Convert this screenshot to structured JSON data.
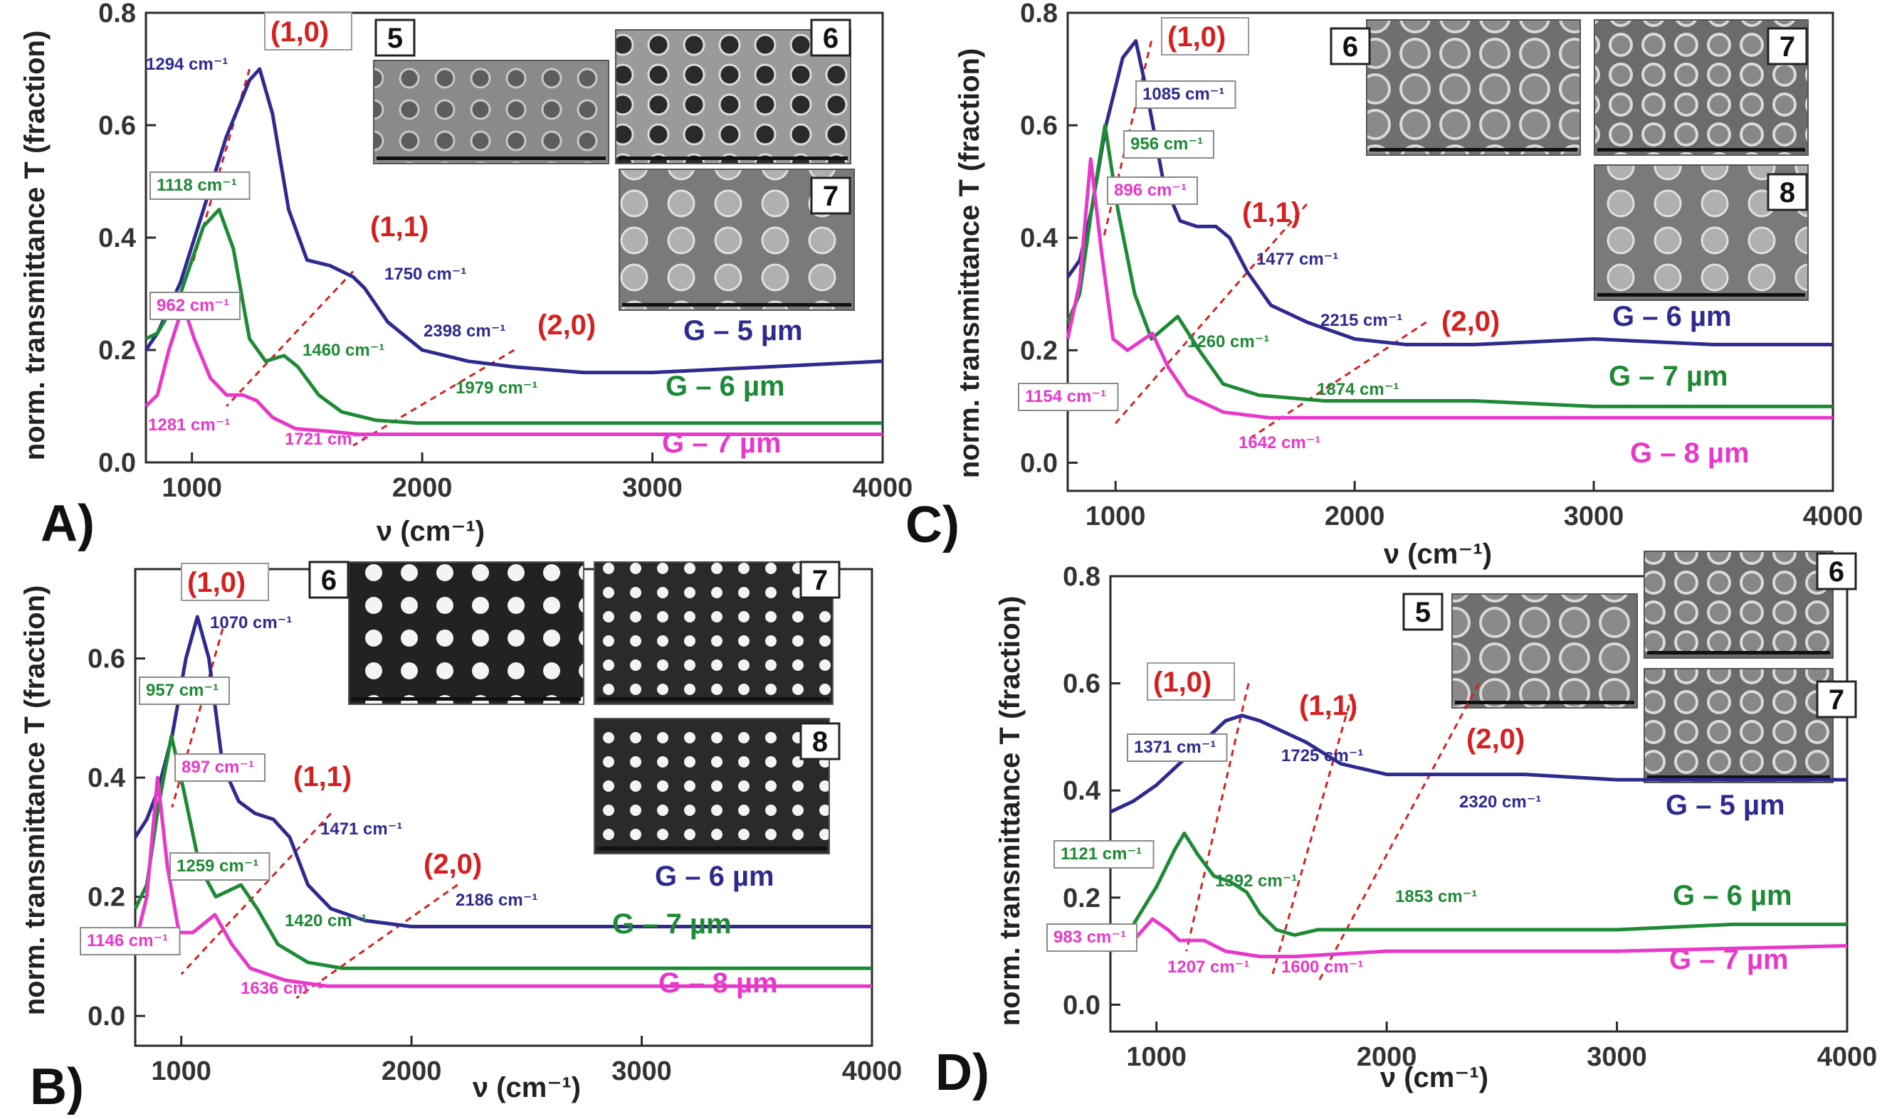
{
  "axis_titles": {
    "x": "ν (cm⁻¹)",
    "y": "norm. transmittance T (fraction)"
  },
  "colors": {
    "blue": "#2e2a8f",
    "green": "#1e8a35",
    "magenta": "#e838c9",
    "red": "#d62020",
    "frame": "#2a2a2a"
  },
  "chart_data": [
    {
      "panel": "A)",
      "type": "line",
      "xlim": [
        800,
        4000
      ],
      "ylim": [
        0,
        0.8
      ],
      "xticks": [
        1000,
        2000,
        3000,
        4000
      ],
      "yticks": [
        0.0,
        0.2,
        0.4,
        0.6,
        0.8
      ],
      "series": [
        {
          "name": "G – 5 µm",
          "color": "blue",
          "x": [
            800,
            850,
            950,
            1050,
            1150,
            1250,
            1294,
            1350,
            1420,
            1500,
            1600,
            1700,
            1750,
            1850,
            2000,
            2200,
            2398,
            2700,
            3000,
            3500,
            4000
          ],
          "y": [
            0.2,
            0.23,
            0.32,
            0.45,
            0.58,
            0.68,
            0.7,
            0.62,
            0.45,
            0.36,
            0.35,
            0.33,
            0.31,
            0.25,
            0.2,
            0.18,
            0.17,
            0.16,
            0.16,
            0.17,
            0.18
          ]
        },
        {
          "name": "G – 6 µm",
          "color": "green",
          "x": [
            800,
            850,
            950,
            1050,
            1118,
            1180,
            1250,
            1320,
            1400,
            1460,
            1550,
            1650,
            1800,
            1979,
            2500,
            3000,
            4000
          ],
          "y": [
            0.22,
            0.23,
            0.3,
            0.42,
            0.45,
            0.38,
            0.22,
            0.18,
            0.19,
            0.17,
            0.12,
            0.09,
            0.075,
            0.07,
            0.07,
            0.07,
            0.07
          ]
        },
        {
          "name": "G – 7 µm",
          "color": "magenta",
          "x": [
            800,
            850,
            900,
            962,
            1010,
            1080,
            1150,
            1220,
            1281,
            1350,
            1450,
            1600,
            1721,
            2000,
            3000,
            4000
          ],
          "y": [
            0.1,
            0.12,
            0.2,
            0.28,
            0.22,
            0.15,
            0.12,
            0.12,
            0.11,
            0.08,
            0.06,
            0.055,
            0.05,
            0.05,
            0.05,
            0.05
          ]
        }
      ],
      "peak_labels": [
        {
          "text": "1294 cm⁻¹",
          "color": "blue",
          "boxed": false
        },
        {
          "text": "1750 cm⁻¹",
          "color": "blue",
          "boxed": false
        },
        {
          "text": "2398 cm⁻¹",
          "color": "blue",
          "boxed": false
        },
        {
          "text": "1118 cm⁻¹",
          "color": "green",
          "boxed": true
        },
        {
          "text": "1460 cm⁻¹",
          "color": "green",
          "boxed": false
        },
        {
          "text": "1979 cm⁻¹",
          "color": "green",
          "boxed": false
        },
        {
          "text": "962 cm⁻¹",
          "color": "magenta",
          "boxed": true
        },
        {
          "text": "1281 cm⁻¹",
          "color": "magenta",
          "boxed": false
        },
        {
          "text": "1721 cm⁻¹",
          "color": "magenta",
          "boxed": false
        }
      ],
      "order_labels": [
        "(1,0)",
        "(1,1)",
        "(2,0)"
      ],
      "series_labels": [
        {
          "text": "G – 5 µm",
          "color": "blue"
        },
        {
          "text": "G – 6 µm",
          "color": "green"
        },
        {
          "text": "G – 7 µm",
          "color": "magenta"
        }
      ],
      "sem_insets": [
        {
          "label": "5",
          "style": "grey-holes"
        },
        {
          "label": "6",
          "style": "dark-holes"
        },
        {
          "label": "7",
          "style": "grey-discs"
        }
      ]
    },
    {
      "panel": "B)",
      "type": "line",
      "xlim": [
        800,
        4000
      ],
      "ylim": [
        -0.05,
        0.75
      ],
      "xticks": [
        1000,
        2000,
        3000,
        4000
      ],
      "yticks": [
        0.0,
        0.2,
        0.4,
        0.6
      ],
      "series": [
        {
          "name": "G – 6 µm",
          "color": "blue",
          "x": [
            800,
            850,
            900,
            960,
            1020,
            1070,
            1120,
            1180,
            1250,
            1320,
            1400,
            1471,
            1550,
            1650,
            1800,
            2000,
            2186,
            2500,
            3000,
            3500,
            4000
          ],
          "y": [
            0.3,
            0.33,
            0.38,
            0.47,
            0.6,
            0.67,
            0.6,
            0.42,
            0.36,
            0.34,
            0.33,
            0.3,
            0.22,
            0.18,
            0.16,
            0.15,
            0.15,
            0.15,
            0.15,
            0.15,
            0.15
          ]
        },
        {
          "name": "G – 7 µm",
          "color": "green",
          "x": [
            800,
            850,
            900,
            957,
            1010,
            1080,
            1150,
            1259,
            1330,
            1420,
            1550,
            1700,
            2000,
            3000,
            4000
          ],
          "y": [
            0.18,
            0.22,
            0.35,
            0.47,
            0.38,
            0.25,
            0.2,
            0.22,
            0.18,
            0.12,
            0.09,
            0.08,
            0.08,
            0.08,
            0.08
          ]
        },
        {
          "name": "G – 8 µm",
          "color": "magenta",
          "x": [
            800,
            850,
            897,
            940,
            990,
            1050,
            1146,
            1220,
            1300,
            1450,
            1636,
            2000,
            3000,
            4000
          ],
          "y": [
            0.12,
            0.2,
            0.4,
            0.25,
            0.14,
            0.14,
            0.17,
            0.12,
            0.08,
            0.06,
            0.05,
            0.05,
            0.05,
            0.05
          ]
        }
      ],
      "peak_labels": [
        {
          "text": "1070 cm⁻¹",
          "color": "blue",
          "boxed": false
        },
        {
          "text": "1471 cm⁻¹",
          "color": "blue",
          "boxed": false
        },
        {
          "text": "2186 cm⁻¹",
          "color": "blue",
          "boxed": false
        },
        {
          "text": "957 cm⁻¹",
          "color": "green",
          "boxed": true
        },
        {
          "text": "1259 cm⁻¹",
          "color": "green",
          "boxed": true
        },
        {
          "text": "1420 cm⁻¹",
          "color": "green",
          "boxed": false
        },
        {
          "text": "897 cm⁻¹",
          "color": "magenta",
          "boxed": true
        },
        {
          "text": "1146 cm⁻¹",
          "color": "magenta",
          "boxed": true
        },
        {
          "text": "1636 cm⁻¹",
          "color": "magenta",
          "boxed": false
        }
      ],
      "order_labels": [
        "(1,0)",
        "(1,1)",
        "(2,0)"
      ],
      "series_labels": [
        {
          "text": "G – 6 µm",
          "color": "blue"
        },
        {
          "text": "G – 7 µm",
          "color": "green"
        },
        {
          "text": "G – 8 µm",
          "color": "magenta"
        }
      ],
      "sem_insets": [
        {
          "label": "6",
          "style": "white-dots-large"
        },
        {
          "label": "7",
          "style": "white-dots-small"
        },
        {
          "label": "8",
          "style": "white-dots-small"
        }
      ]
    },
    {
      "panel": "C)",
      "type": "line",
      "xlim": [
        800,
        4000
      ],
      "ylim": [
        -0.05,
        0.8
      ],
      "xticks": [
        1000,
        2000,
        3000,
        4000
      ],
      "yticks": [
        0.0,
        0.2,
        0.4,
        0.6,
        0.8
      ],
      "series": [
        {
          "name": "G – 6 µm",
          "color": "blue",
          "x": [
            800,
            850,
            900,
            960,
            1030,
            1085,
            1130,
            1200,
            1270,
            1340,
            1420,
            1477,
            1550,
            1650,
            1800,
            2000,
            2215,
            2500,
            3000,
            3500,
            4000
          ],
          "y": [
            0.33,
            0.36,
            0.45,
            0.6,
            0.72,
            0.75,
            0.66,
            0.5,
            0.43,
            0.42,
            0.42,
            0.4,
            0.34,
            0.28,
            0.25,
            0.22,
            0.21,
            0.21,
            0.22,
            0.21,
            0.21
          ]
        },
        {
          "name": "G – 7 µm",
          "color": "green",
          "x": [
            800,
            850,
            900,
            956,
            1010,
            1080,
            1150,
            1260,
            1350,
            1450,
            1600,
            1874,
            2500,
            3000,
            4000
          ],
          "y": [
            0.25,
            0.3,
            0.45,
            0.6,
            0.45,
            0.3,
            0.22,
            0.26,
            0.2,
            0.14,
            0.12,
            0.11,
            0.11,
            0.1,
            0.1
          ]
        },
        {
          "name": "G – 8 µm",
          "color": "magenta",
          "x": [
            800,
            850,
            896,
            940,
            990,
            1050,
            1154,
            1220,
            1300,
            1450,
            1642,
            2000,
            3000,
            4000
          ],
          "y": [
            0.22,
            0.32,
            0.54,
            0.38,
            0.22,
            0.2,
            0.23,
            0.17,
            0.12,
            0.09,
            0.08,
            0.08,
            0.08,
            0.08
          ]
        }
      ],
      "peak_labels": [
        {
          "text": "1085 cm⁻¹",
          "color": "blue",
          "boxed": true
        },
        {
          "text": "1477 cm⁻¹",
          "color": "blue",
          "boxed": false
        },
        {
          "text": "2215 cm⁻¹",
          "color": "blue",
          "boxed": false
        },
        {
          "text": "956 cm⁻¹",
          "color": "green",
          "boxed": true
        },
        {
          "text": "1260 cm⁻¹",
          "color": "green",
          "boxed": false
        },
        {
          "text": "1874 cm⁻¹",
          "color": "green",
          "boxed": false
        },
        {
          "text": "896 cm⁻¹",
          "color": "magenta",
          "boxed": true
        },
        {
          "text": "1154 cm⁻¹",
          "color": "magenta",
          "boxed": true
        },
        {
          "text": "1642 cm⁻¹",
          "color": "magenta",
          "boxed": false
        }
      ],
      "order_labels": [
        "(1,0)",
        "(1,1)",
        "(2,0)"
      ],
      "series_labels": [
        {
          "text": "G – 6 µm",
          "color": "blue"
        },
        {
          "text": "G – 7 µm",
          "color": "green"
        },
        {
          "text": "G – 8 µm",
          "color": "magenta"
        }
      ],
      "sem_insets": [
        {
          "label": "6",
          "style": "grey-rings"
        },
        {
          "label": "7",
          "style": "grey-rings-small"
        },
        {
          "label": "8",
          "style": "grey-discs"
        }
      ]
    },
    {
      "panel": "D)",
      "type": "line",
      "xlim": [
        800,
        4000
      ],
      "ylim": [
        -0.05,
        0.8
      ],
      "xticks": [
        1000,
        2000,
        3000,
        4000
      ],
      "yticks": [
        0.0,
        0.2,
        0.4,
        0.6,
        0.8
      ],
      "series": [
        {
          "name": "G – 5 µm",
          "color": "blue",
          "x": [
            800,
            900,
            1000,
            1100,
            1200,
            1300,
            1371,
            1450,
            1550,
            1650,
            1725,
            1800,
            1900,
            2000,
            2320,
            2600,
            3000,
            3500,
            4000
          ],
          "y": [
            0.36,
            0.38,
            0.41,
            0.45,
            0.49,
            0.53,
            0.54,
            0.53,
            0.51,
            0.49,
            0.47,
            0.45,
            0.44,
            0.43,
            0.43,
            0.43,
            0.42,
            0.42,
            0.42
          ]
        },
        {
          "name": "G – 6 µm",
          "color": "green",
          "x": [
            800,
            900,
            1000,
            1080,
            1121,
            1180,
            1250,
            1320,
            1392,
            1450,
            1520,
            1600,
            1700,
            1853,
            2500,
            3000,
            3500,
            4000
          ],
          "y": [
            0.12,
            0.15,
            0.22,
            0.29,
            0.32,
            0.28,
            0.24,
            0.23,
            0.21,
            0.17,
            0.14,
            0.13,
            0.14,
            0.14,
            0.14,
            0.14,
            0.15,
            0.15
          ]
        },
        {
          "name": "G – 7 µm",
          "color": "magenta",
          "x": [
            800,
            900,
            983,
            1050,
            1100,
            1207,
            1300,
            1450,
            1600,
            2000,
            3000,
            4000
          ],
          "y": [
            0.1,
            0.12,
            0.16,
            0.14,
            0.12,
            0.12,
            0.1,
            0.09,
            0.09,
            0.1,
            0.1,
            0.11
          ]
        }
      ],
      "peak_labels": [
        {
          "text": "1371 cm⁻¹",
          "color": "blue",
          "boxed": true
        },
        {
          "text": "1725 cm⁻¹",
          "color": "blue",
          "boxed": false
        },
        {
          "text": "2320 cm⁻¹",
          "color": "blue",
          "boxed": false
        },
        {
          "text": "1121 cm⁻¹",
          "color": "green",
          "boxed": true
        },
        {
          "text": "1392 cm⁻¹",
          "color": "green",
          "boxed": false
        },
        {
          "text": "1853 cm⁻¹",
          "color": "green",
          "boxed": false
        },
        {
          "text": "983 cm⁻¹",
          "color": "magenta",
          "boxed": true
        },
        {
          "text": "1207 cm⁻¹",
          "color": "magenta",
          "boxed": false
        },
        {
          "text": "1600 cm⁻¹",
          "color": "magenta",
          "boxed": false
        }
      ],
      "order_labels": [
        "(1,0)",
        "(1,1)",
        "(2,0)"
      ],
      "series_labels": [
        {
          "text": "G – 5 µm",
          "color": "blue"
        },
        {
          "text": "G – 6 µm",
          "color": "green"
        },
        {
          "text": "G – 7 µm",
          "color": "magenta"
        }
      ],
      "sem_insets": [
        {
          "label": "5",
          "style": "grey-rings"
        },
        {
          "label": "6",
          "style": "grey-rings-small"
        },
        {
          "label": "7",
          "style": "grey-rings-small"
        }
      ]
    }
  ]
}
